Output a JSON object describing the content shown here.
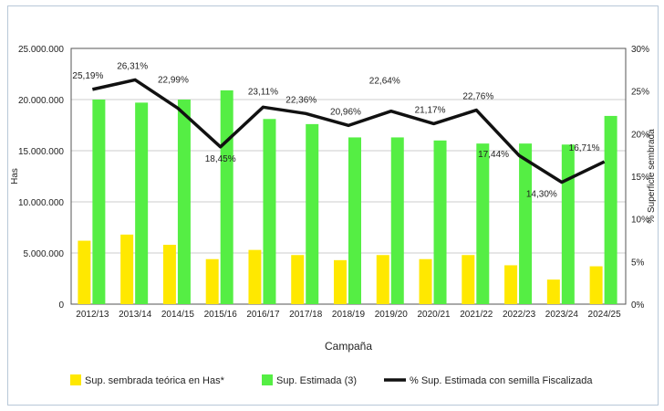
{
  "chart_data": {
    "type": "bar",
    "categories": [
      "2012/13",
      "2013/14",
      "2014/15",
      "2015/16",
      "2016/17",
      "2017/18",
      "2018/19",
      "2019/20",
      "2020/21",
      "2021/22",
      "2022/23",
      "2023/24",
      "2024/25"
    ],
    "series": [
      {
        "name": "Sup. sembrada teórica en Has*",
        "type": "bar",
        "axis": "left",
        "color": "#ffe800",
        "values": [
          6200000,
          6800000,
          5800000,
          4400000,
          5300000,
          4800000,
          4300000,
          4800000,
          4400000,
          4800000,
          3800000,
          2400000,
          3700000
        ]
      },
      {
        "name": "Sup. Estimada (3)",
        "type": "bar",
        "axis": "left",
        "color": "#55ee44",
        "values": [
          20000000,
          19700000,
          20000000,
          20900000,
          18100000,
          17600000,
          16300000,
          16300000,
          16000000,
          15700000,
          15700000,
          15600000,
          18400000
        ]
      },
      {
        "name": "% Sup. Estimada con semilla Fiscalizada",
        "type": "line",
        "axis": "right",
        "color": "#111111",
        "values": [
          25.19,
          26.31,
          22.99,
          18.45,
          23.11,
          22.36,
          20.96,
          22.64,
          21.17,
          22.76,
          17.44,
          14.3,
          16.71
        ],
        "labels": [
          "25,19%",
          "26,31%",
          "22,99%",
          "18,45%",
          "23,11%",
          "22,36%",
          "20,96%",
          "22,64%",
          "21,17%",
          "22,76%",
          "17,44%",
          "14,30%",
          "16,71%"
        ]
      }
    ],
    "xlabel": "Campaña",
    "ylabel": "Has",
    "y2label": "% Superficie sembrada",
    "ylim": [
      0,
      25000000
    ],
    "y2lim": [
      0,
      30
    ],
    "yticks": [
      "0",
      "5.000.000",
      "10.000.000",
      "15.000.000",
      "20.000.000",
      "25.000.000"
    ],
    "y2ticks": [
      "0%",
      "5%",
      "10%",
      "15%",
      "20%",
      "25%",
      "30%"
    ],
    "grid": true,
    "legend": "bottom"
  }
}
